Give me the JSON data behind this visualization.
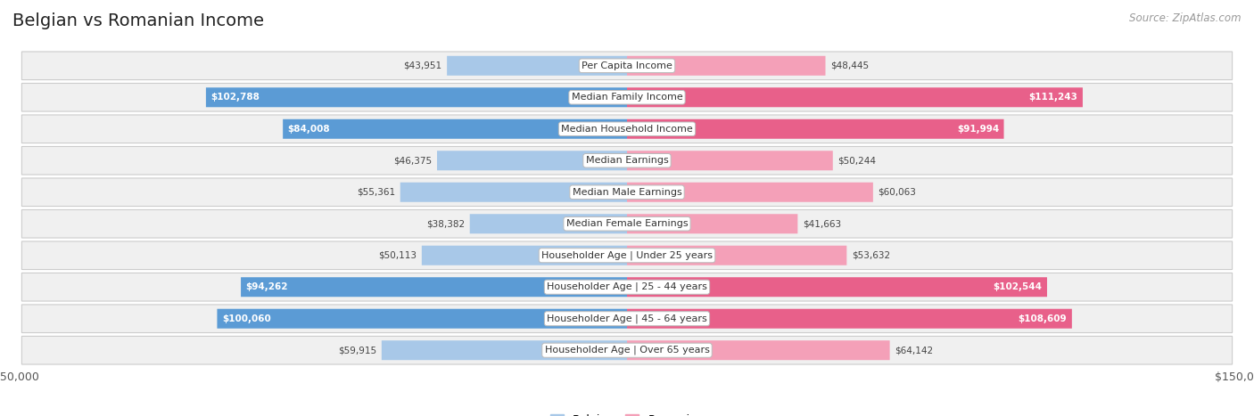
{
  "title": "Belgian vs Romanian Income",
  "source": "Source: ZipAtlas.com",
  "categories": [
    "Per Capita Income",
    "Median Family Income",
    "Median Household Income",
    "Median Earnings",
    "Median Male Earnings",
    "Median Female Earnings",
    "Householder Age | Under 25 years",
    "Householder Age | 25 - 44 years",
    "Householder Age | 45 - 64 years",
    "Householder Age | Over 65 years"
  ],
  "belgian_values": [
    43951,
    102788,
    84008,
    46375,
    55361,
    38382,
    50113,
    94262,
    100060,
    59915
  ],
  "romanian_values": [
    48445,
    111243,
    91994,
    50244,
    60063,
    41663,
    53632,
    102544,
    108609,
    64142
  ],
  "belgian_color_light": "#a8c8e8",
  "belgian_color_dark": "#5b9bd5",
  "romanian_color_light": "#f4a0b8",
  "romanian_color_dark": "#e8608a",
  "max_value": 150000,
  "bar_height": 0.62,
  "title_fontsize": 14,
  "label_fontsize": 8,
  "value_fontsize": 7.5,
  "legend_fontsize": 9,
  "large_threshold": 70000
}
